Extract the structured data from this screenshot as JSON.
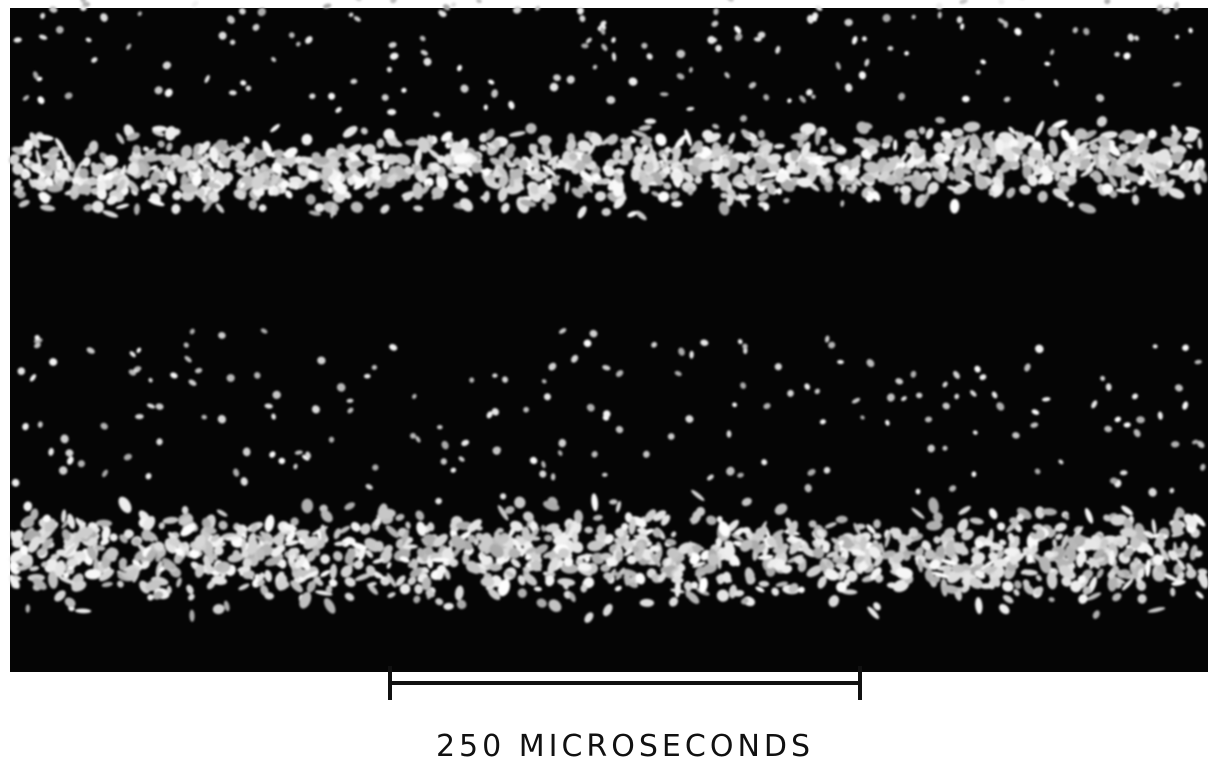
{
  "scale_bar": {
    "label": "250 MICROSECONDS"
  }
}
